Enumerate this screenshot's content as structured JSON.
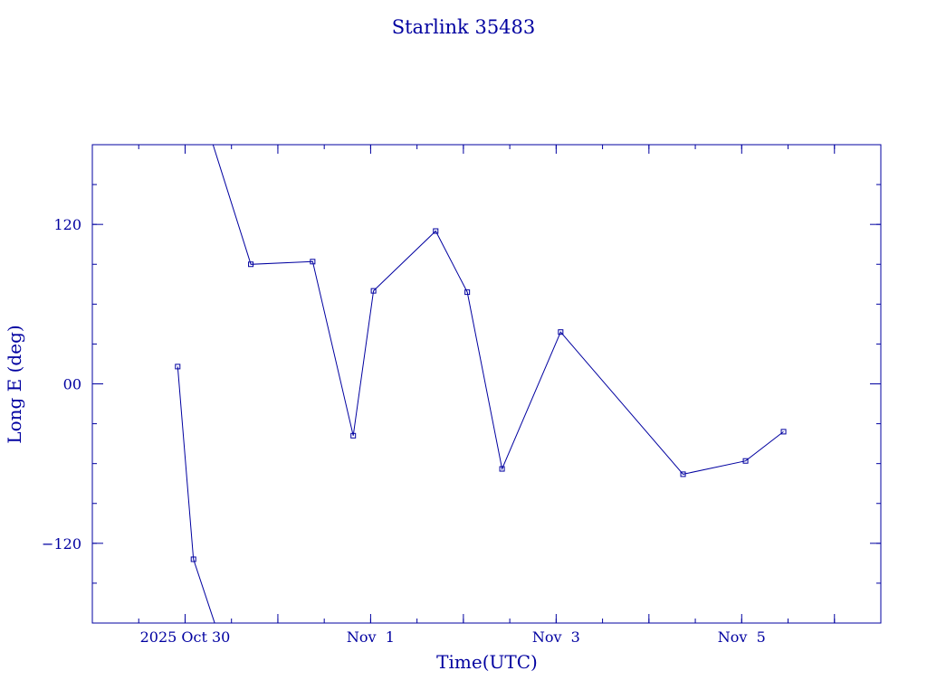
{
  "chart_data": {
    "type": "line",
    "title": "Starlink 35483",
    "xlabel": "Time(UTC)",
    "ylabel": "Long E (deg)",
    "x_unit": "days",
    "xlim": [
      "2025-10-29T00:00",
      "2025-11-06T12:00"
    ],
    "ylim": [
      -180,
      180
    ],
    "yticks": [
      -120,
      0,
      120
    ],
    "ytick_labels": [
      "−120",
      "00",
      "120"
    ],
    "xticks": [
      "2025-10-30T00:00",
      "2025-11-01T00:00",
      "2025-11-03T00:00",
      "2025-11-05T00:00"
    ],
    "xtick_labels": [
      "2025 Oct 30",
      "Nov  1",
      "Nov  3",
      "Nov  5"
    ],
    "grid": false,
    "color": "#0000a0",
    "series": [
      {
        "segments": [
          [
            {
              "x": "2025-10-29T22:05",
              "y": 13
            },
            {
              "x": "2025-10-30T02:10",
              "y": -132
            },
            {
              "x": "2025-10-30T08:00",
              "y": -183
            }
          ],
          [
            {
              "x": "2025-10-30T07:00",
              "y": 182
            },
            {
              "x": "2025-10-30T17:00",
              "y": 90
            },
            {
              "x": "2025-10-31T09:00",
              "y": 92
            },
            {
              "x": "2025-10-31T19:30",
              "y": -39
            },
            {
              "x": "2025-11-01T00:45",
              "y": 70
            },
            {
              "x": "2025-11-01T16:50",
              "y": 115
            },
            {
              "x": "2025-11-02T01:00",
              "y": 69
            },
            {
              "x": "2025-11-02T10:00",
              "y": -64
            },
            {
              "x": "2025-11-03T01:10",
              "y": 39
            },
            {
              "x": "2025-11-04T08:50",
              "y": -68
            },
            {
              "x": "2025-11-05T01:00",
              "y": -58
            },
            {
              "x": "2025-11-05T10:50",
              "y": -36
            }
          ]
        ]
      }
    ]
  }
}
